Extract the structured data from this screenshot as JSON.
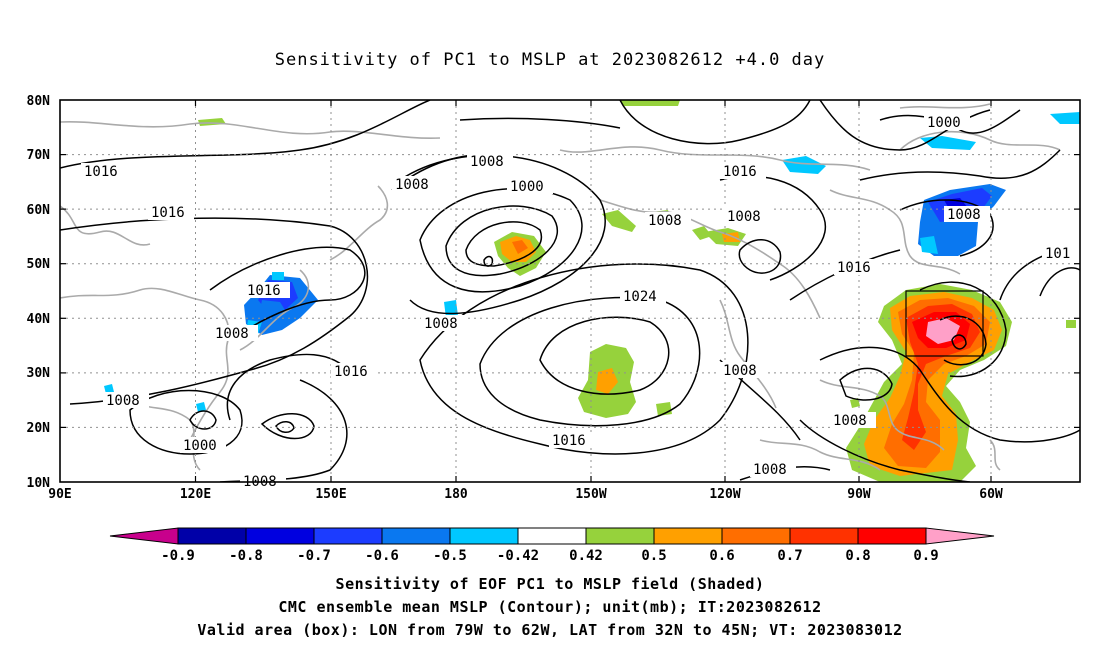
{
  "title": "Sensitivity of PC1 to MSLP at 2023082612 +4.0 day",
  "lat_labels": [
    "80N",
    "70N",
    "60N",
    "50N",
    "40N",
    "30N",
    "20N",
    "10N"
  ],
  "lon_labels": [
    "90E",
    "120E",
    "150E",
    "180",
    "150W",
    "120W",
    "90W",
    "60W"
  ],
  "contour_labels": [
    "1016",
    "1016",
    "1008",
    "1008",
    "1000",
    "1016",
    "1008",
    "1000",
    "1008",
    "101",
    "1016",
    "1008",
    "1008",
    "1016",
    "1024",
    "1008",
    "1016",
    "1008",
    "1008",
    "1000",
    "1008",
    "1008",
    "1008"
  ],
  "colorbar": {
    "colors": [
      "#c8008c",
      "#0000a8",
      "#0000e0",
      "#1c3cff",
      "#0a78f0",
      "#00c8ff",
      "#ffffff",
      "#96d23c",
      "#ffa000",
      "#ff6e00",
      "#ff3200",
      "#ff0000",
      "#ffa0c8"
    ],
    "labels": [
      "-0.9",
      "-0.8",
      "-0.7",
      "-0.6",
      "-0.5",
      "-0.42",
      "0.42",
      "0.5",
      "0.6",
      "0.7",
      "0.8",
      "0.9"
    ]
  },
  "captions": {
    "line1": "Sensitivity of EOF PC1 to MSLP field (Shaded)",
    "line2": "CMC ensemble mean MSLP (Contour); unit(mb); IT:2023082612",
    "line3": "Valid area (box): LON from 79W to 62W, LAT from 32N to 45N; VT: 2023083012"
  }
}
